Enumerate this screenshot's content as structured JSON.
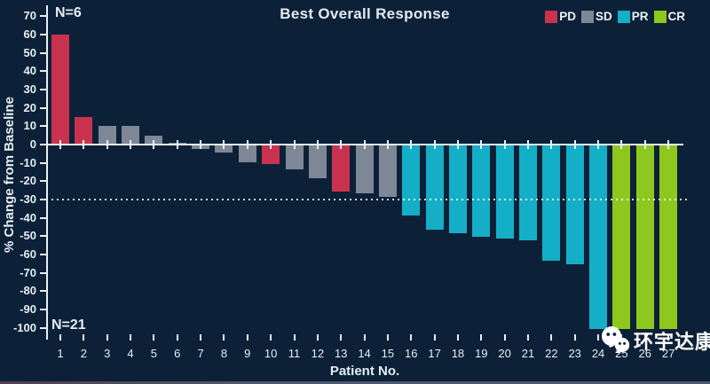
{
  "title": "Best Overall Response",
  "annotations": {
    "top_left": "N=6",
    "bottom_left": "N=21"
  },
  "watermark": {
    "text": "环宇达康",
    "icon": "wechat-logo"
  },
  "colors": {
    "background": "#0c2137",
    "axis": "#e8eff5",
    "text": "#e6edf4",
    "PD": "#c9324e",
    "SD": "#7d8796",
    "PR": "#14afc6",
    "CR": "#8ec81e"
  },
  "chart_data": {
    "type": "bar",
    "title": "Best Overall Response",
    "xlabel": "Patient No.",
    "ylabel": "% Change from Baseline",
    "ylim": [
      -100,
      70
    ],
    "ytick_interval": 10,
    "reference_line_y": -30,
    "grid": false,
    "legend_position": "top-right",
    "categories": [
      "1",
      "2",
      "3",
      "4",
      "5",
      "6",
      "7",
      "8",
      "9",
      "10",
      "11",
      "12",
      "13",
      "14",
      "15",
      "16",
      "17",
      "18",
      "19",
      "20",
      "21",
      "22",
      "23",
      "24",
      "25",
      "26",
      "27"
    ],
    "values": [
      60,
      15,
      10,
      10,
      5,
      1,
      -2,
      -4,
      -9,
      -10,
      -13,
      -18,
      -25,
      -26,
      -28,
      -38,
      -46,
      -48,
      -50,
      -51,
      -52,
      -63,
      -65,
      -100,
      -100,
      -100,
      -100
    ],
    "responses": [
      "PD",
      "PD",
      "SD",
      "SD",
      "SD",
      "SD",
      "SD",
      "SD",
      "SD",
      "PD",
      "SD",
      "SD",
      "PD",
      "SD",
      "SD",
      "PR",
      "PR",
      "PR",
      "PR",
      "PR",
      "PR",
      "PR",
      "PR",
      "PR",
      "CR",
      "CR",
      "CR"
    ],
    "legend": [
      {
        "label": "PD",
        "color": "#c9324e"
      },
      {
        "label": "SD",
        "color": "#7d8796"
      },
      {
        "label": "PR",
        "color": "#14afc6"
      },
      {
        "label": "CR",
        "color": "#8ec81e"
      }
    ],
    "group_counts": {
      "above_baseline": "N=6",
      "below_baseline": "N=21"
    }
  }
}
